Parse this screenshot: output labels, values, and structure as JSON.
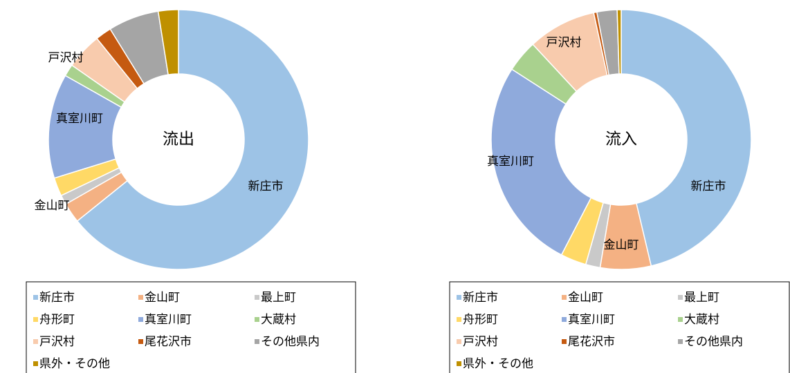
{
  "chart_data": [
    {
      "type": "pie",
      "title": "流出",
      "categories": [
        "新庄市",
        "金山町",
        "最上町",
        "舟形町",
        "真室川町",
        "大蔵村",
        "戸沢村",
        "尾花沢市",
        "その他県内",
        "県外・その他"
      ],
      "values": [
        64.2,
        2.5,
        1.2,
        2.3,
        13,
        1.5,
        4.5,
        2,
        6.3,
        2.5
      ],
      "colors": [
        "#9dc3e6",
        "#f4b183",
        "#c9c9c9",
        "#ffd966",
        "#8faadc",
        "#a9d18e",
        "#f8cbad",
        "#c55a11",
        "#a5a5a5",
        "#bf9000"
      ]
    },
    {
      "type": "pie",
      "title": "流入",
      "categories": [
        "新庄市",
        "金山町",
        "最上町",
        "舟形町",
        "真室川町",
        "大蔵村",
        "戸沢村",
        "尾花沢市",
        "その他県内",
        "県外・その他"
      ],
      "values": [
        46.3,
        6.3,
        1.8,
        3.2,
        26.5,
        4,
        8.5,
        0.4,
        2.5,
        0.5
      ],
      "colors": [
        "#9dc3e6",
        "#f4b183",
        "#c9c9c9",
        "#ffd966",
        "#8faadc",
        "#a9d18e",
        "#f8cbad",
        "#c55a11",
        "#a5a5a5",
        "#bf9000"
      ]
    }
  ]
}
